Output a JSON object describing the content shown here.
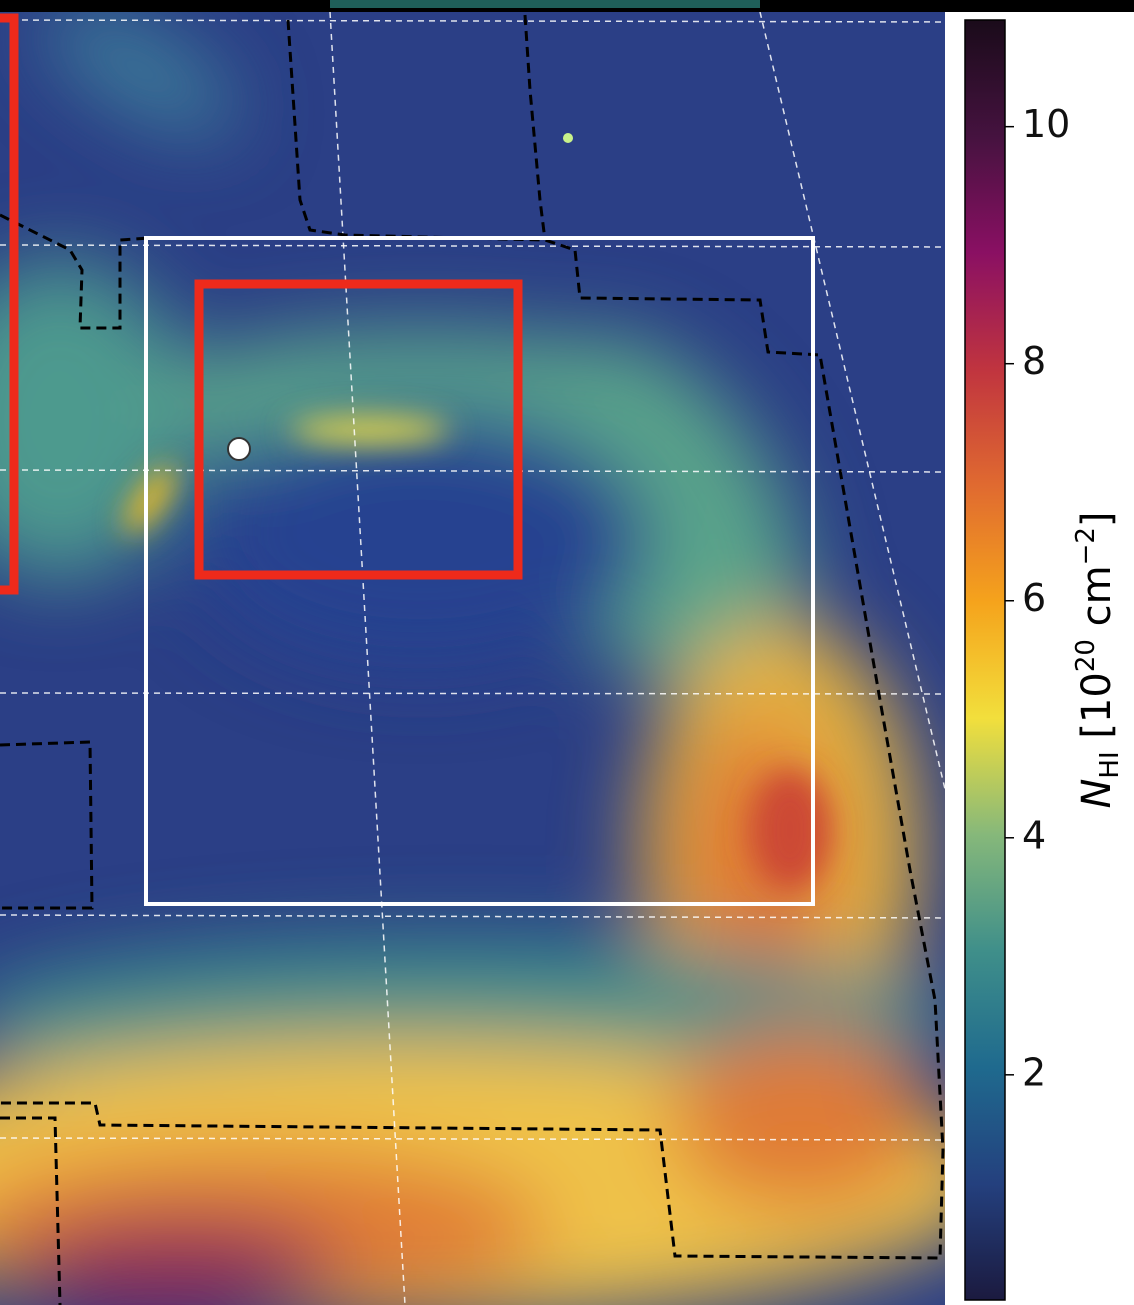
{
  "chart_data": {
    "type": "image",
    "colorbar": {
      "lim": [
        0.1,
        10.9
      ],
      "ticks": [
        2,
        4,
        6,
        8,
        10
      ],
      "colors": [
        "#1b1a3f",
        "#24407e",
        "#1f6a8e",
        "#3f8f8a",
        "#86b87a",
        "#f2df3c",
        "#f5a31c",
        "#e06a30",
        "#c0343f",
        "#8a1063",
        "#45123f",
        "#1a0b1a"
      ],
      "label": {
        "symbol": "N",
        "symbol_sub": "HI",
        "open": " [10",
        "exp": "20",
        "unit": " cm",
        "unit_exp": "−2",
        "close": "]"
      }
    }
  }
}
